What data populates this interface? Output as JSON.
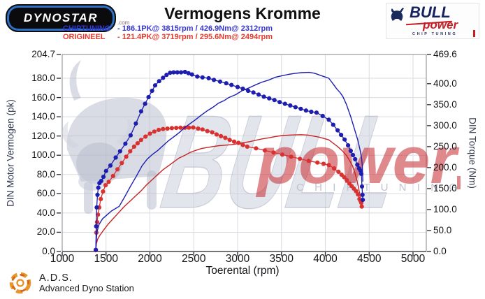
{
  "header": {
    "dynostar_text": "DYNOSTAR",
    "dynostar_suffix": ".com",
    "title": "Vermogens Kromme",
    "bull_logo": {
      "bull": "BULL",
      "power": "power",
      "chip": "CHIP TUNING"
    }
  },
  "legend": [
    {
      "label": "CHIPTUNING",
      "details": "- 186.1PK@ 3815rpm / 426.9Nm@ 2312rpm",
      "color": "#3535cf"
    },
    {
      "label": "ORIGINEEL",
      "details": "- 121.4PK@ 3719rpm / 295.6Nm@ 2494rpm",
      "color": "#e6392c"
    }
  ],
  "watermarks": {
    "bull_text": "BULL",
    "power_text": "power",
    "chip_text": "CHIP TUNING"
  },
  "footer": {
    "ads": "A.D.S.",
    "ads_sub": "Advanced Dyno Station"
  },
  "chart_data": {
    "type": "line",
    "title": "Vermogens Kromme",
    "xlabel": "Toerental (rpm)",
    "ylabel_left": "DIN Motor Vermogen (pk)",
    "ylabel_right": "DIN Torque (Nm)",
    "xlim": [
      1000,
      5150
    ],
    "ylim_left": [
      0,
      204.7
    ],
    "ylim_right": [
      0,
      469.6
    ],
    "x_ticks": [
      1000,
      1500,
      2000,
      2500,
      3000,
      3500,
      4000,
      4500,
      5000
    ],
    "y_left_ticks": [
      204.7,
      180,
      160,
      140,
      120,
      100,
      80,
      60,
      40,
      20,
      0
    ],
    "y_right_ticks": [
      469.6,
      400,
      350,
      300,
      250,
      200,
      150,
      100,
      50,
      0
    ],
    "grid": true,
    "legend_position": "top-left",
    "colors": {
      "chiptuning": "#1d1db0",
      "origineel": "#c62424",
      "origineel_markers": "#d93030"
    },
    "series": [
      {
        "name": "origineel_power_pk",
        "axis": "left",
        "color": "#c62424",
        "markers": false,
        "points": [
          [
            1383,
            2
          ],
          [
            1390,
            8
          ],
          [
            1405,
            13
          ],
          [
            1430,
            17
          ],
          [
            1470,
            22
          ],
          [
            1520,
            28
          ],
          [
            1570,
            33
          ],
          [
            1630,
            39
          ],
          [
            1700,
            46
          ],
          [
            1770,
            52
          ],
          [
            1840,
            58
          ],
          [
            1900,
            63
          ],
          [
            1960,
            69
          ],
          [
            2030,
            75
          ],
          [
            2090,
            80
          ],
          [
            2150,
            85
          ],
          [
            2210,
            89
          ],
          [
            2270,
            93
          ],
          [
            2330,
            97
          ],
          [
            2400,
            100
          ],
          [
            2460,
            103
          ],
          [
            2520,
            105
          ],
          [
            2590,
            107
          ],
          [
            2650,
            108
          ],
          [
            2720,
            109
          ],
          [
            2790,
            110
          ],
          [
            2860,
            110.5
          ],
          [
            2930,
            111
          ],
          [
            3000,
            112
          ],
          [
            3060,
            113
          ],
          [
            3130,
            114
          ],
          [
            3200,
            115.5
          ],
          [
            3280,
            117
          ],
          [
            3350,
            118
          ],
          [
            3430,
            119.5
          ],
          [
            3510,
            120.5
          ],
          [
            3600,
            121
          ],
          [
            3719,
            121.4
          ],
          [
            3800,
            121
          ],
          [
            3860,
            120
          ],
          [
            3920,
            119
          ],
          [
            3980,
            117.5
          ],
          [
            4040,
            116
          ],
          [
            4090,
            112.5
          ],
          [
            4140,
            109
          ],
          [
            4190,
            105
          ],
          [
            4240,
            100
          ],
          [
            4280,
            94
          ],
          [
            4310,
            89
          ],
          [
            4340,
            81
          ],
          [
            4360,
            74
          ],
          [
            4380,
            66
          ],
          [
            4395,
            58
          ],
          [
            4404,
            50
          ],
          [
            4408,
            47
          ]
        ]
      },
      {
        "name": "origineel_torque_nm",
        "axis": "right",
        "color": "#d93030",
        "markers": true,
        "points": [
          [
            1383,
            3
          ],
          [
            1390,
            45
          ],
          [
            1398,
            70
          ],
          [
            1408,
            88
          ],
          [
            1422,
            105
          ],
          [
            1440,
            125
          ],
          [
            1465,
            143
          ],
          [
            1495,
            158
          ],
          [
            1530,
            166
          ],
          [
            1580,
            180
          ],
          [
            1630,
            196
          ],
          [
            1680,
            211
          ],
          [
            1730,
            226
          ],
          [
            1775,
            239
          ],
          [
            1820,
            250
          ],
          [
            1860,
            258
          ],
          [
            1900,
            266
          ],
          [
            1950,
            274
          ],
          [
            2000,
            281
          ],
          [
            2050,
            286
          ],
          [
            2100,
            290
          ],
          [
            2150,
            292
          ],
          [
            2200,
            293
          ],
          [
            2250,
            294
          ],
          [
            2300,
            294.5
          ],
          [
            2350,
            295
          ],
          [
            2400,
            295
          ],
          [
            2445,
            295.3
          ],
          [
            2494,
            295.6
          ],
          [
            2550,
            293
          ],
          [
            2600,
            291
          ],
          [
            2655,
            287
          ],
          [
            2710,
            284
          ],
          [
            2760,
            279
          ],
          [
            2810,
            275
          ],
          [
            2860,
            271
          ],
          [
            2910,
            266
          ],
          [
            2960,
            262
          ],
          [
            3010,
            259
          ],
          [
            3060,
            254
          ],
          [
            3110,
            250
          ],
          [
            3210,
            246
          ],
          [
            3310,
            241
          ],
          [
            3410,
            236
          ],
          [
            3510,
            231
          ],
          [
            3610,
            226
          ],
          [
            3710,
            221
          ],
          [
            3810,
            216
          ],
          [
            3910,
            212
          ],
          [
            3980,
            209
          ],
          [
            4040,
            206
          ],
          [
            4100,
            198
          ],
          [
            4150,
            190
          ],
          [
            4185,
            183
          ],
          [
            4215,
            177
          ],
          [
            4245,
            170
          ],
          [
            4275,
            162
          ],
          [
            4300,
            156
          ],
          [
            4325,
            150
          ],
          [
            4350,
            144
          ],
          [
            4372,
            136
          ],
          [
            4390,
            125
          ],
          [
            4402,
            120
          ],
          [
            4410,
            116
          ],
          [
            4416,
            107
          ]
        ]
      },
      {
        "name": "chiptuning_power_pk",
        "axis": "left",
        "color": "#1d1db0",
        "markers": false,
        "points": [
          [
            1383,
            2
          ],
          [
            1387,
            10
          ],
          [
            1395,
            20
          ],
          [
            1420,
            28
          ],
          [
            1460,
            34
          ],
          [
            1510,
            38
          ],
          [
            1560,
            42
          ],
          [
            1650,
            47
          ],
          [
            1720,
            58
          ],
          [
            1780,
            68
          ],
          [
            1850,
            79
          ],
          [
            1910,
            89
          ],
          [
            1970,
            96
          ],
          [
            2030,
            101
          ],
          [
            2090,
            105
          ],
          [
            2150,
            110
          ],
          [
            2210,
            115
          ],
          [
            2270,
            119
          ],
          [
            2340,
            124
          ],
          [
            2400,
            129
          ],
          [
            2460,
            133
          ],
          [
            2520,
            137
          ],
          [
            2590,
            142
          ],
          [
            2650,
            146
          ],
          [
            2720,
            150
          ],
          [
            2780,
            154
          ],
          [
            2850,
            157
          ],
          [
            2900,
            160
          ],
          [
            2980,
            163
          ],
          [
            3050,
            167
          ],
          [
            3130,
            170
          ],
          [
            3200,
            173
          ],
          [
            3280,
            176
          ],
          [
            3350,
            178
          ],
          [
            3430,
            181
          ],
          [
            3500,
            182.5
          ],
          [
            3580,
            184
          ],
          [
            3650,
            185
          ],
          [
            3730,
            185.8
          ],
          [
            3815,
            186.1
          ],
          [
            3870,
            185.3
          ],
          [
            3900,
            184.5
          ],
          [
            3960,
            182.5
          ],
          [
            4040,
            180
          ],
          [
            4090,
            174
          ],
          [
            4130,
            169
          ],
          [
            4170,
            165
          ],
          [
            4200,
            161
          ],
          [
            4240,
            153
          ],
          [
            4290,
            140
          ],
          [
            4330,
            128
          ],
          [
            4370,
            116
          ],
          [
            4400,
            104
          ],
          [
            4415,
            96
          ],
          [
            4422,
            88
          ],
          [
            4428,
            73
          ]
        ]
      },
      {
        "name": "chiptuning_torque_nm",
        "axis": "right",
        "color": "#1d1db0",
        "markers": true,
        "points": [
          [
            1383,
            4
          ],
          [
            1388,
            60
          ],
          [
            1394,
            105
          ],
          [
            1402,
            135
          ],
          [
            1412,
            152
          ],
          [
            1425,
            163
          ],
          [
            1445,
            168
          ],
          [
            1470,
            178
          ],
          [
            1500,
            192
          ],
          [
            1550,
            205
          ],
          [
            1610,
            224
          ],
          [
            1660,
            239
          ],
          [
            1720,
            257
          ],
          [
            1780,
            277
          ],
          [
            1840,
            305
          ],
          [
            1900,
            334
          ],
          [
            1945,
            352
          ],
          [
            1985,
            368
          ],
          [
            2025,
            383
          ],
          [
            2060,
            396
          ],
          [
            2105,
            406
          ],
          [
            2150,
            414
          ],
          [
            2190,
            421
          ],
          [
            2230,
            426
          ],
          [
            2270,
            427
          ],
          [
            2312,
            426.9
          ],
          [
            2355,
            427
          ],
          [
            2400,
            428
          ],
          [
            2440,
            425
          ],
          [
            2480,
            422
          ],
          [
            2540,
            417
          ],
          [
            2600,
            415
          ],
          [
            2670,
            413
          ],
          [
            2730,
            409
          ],
          [
            2800,
            405
          ],
          [
            2870,
            401
          ],
          [
            2930,
            397
          ],
          [
            3000,
            392
          ],
          [
            3060,
            388
          ],
          [
            3120,
            383
          ],
          [
            3180,
            379
          ],
          [
            3240,
            374
          ],
          [
            3300,
            369
          ],
          [
            3360,
            365
          ],
          [
            3420,
            361
          ],
          [
            3480,
            356
          ],
          [
            3540,
            352
          ],
          [
            3600,
            348
          ],
          [
            3660,
            344
          ],
          [
            3720,
            340
          ],
          [
            3780,
            336
          ],
          [
            3840,
            333
          ],
          [
            3900,
            331
          ],
          [
            3970,
            323
          ],
          [
            4040,
            314
          ],
          [
            4090,
            302
          ],
          [
            4140,
            289
          ],
          [
            4180,
            278
          ],
          [
            4220,
            267
          ],
          [
            4260,
            253
          ],
          [
            4290,
            240
          ],
          [
            4315,
            230
          ],
          [
            4340,
            220
          ],
          [
            4365,
            207
          ],
          [
            4385,
            198
          ],
          [
            4400,
            193
          ],
          [
            4410,
            185
          ],
          [
            4418,
            155
          ],
          [
            4424,
            135
          ],
          [
            4427,
            123
          ]
        ]
      }
    ]
  }
}
